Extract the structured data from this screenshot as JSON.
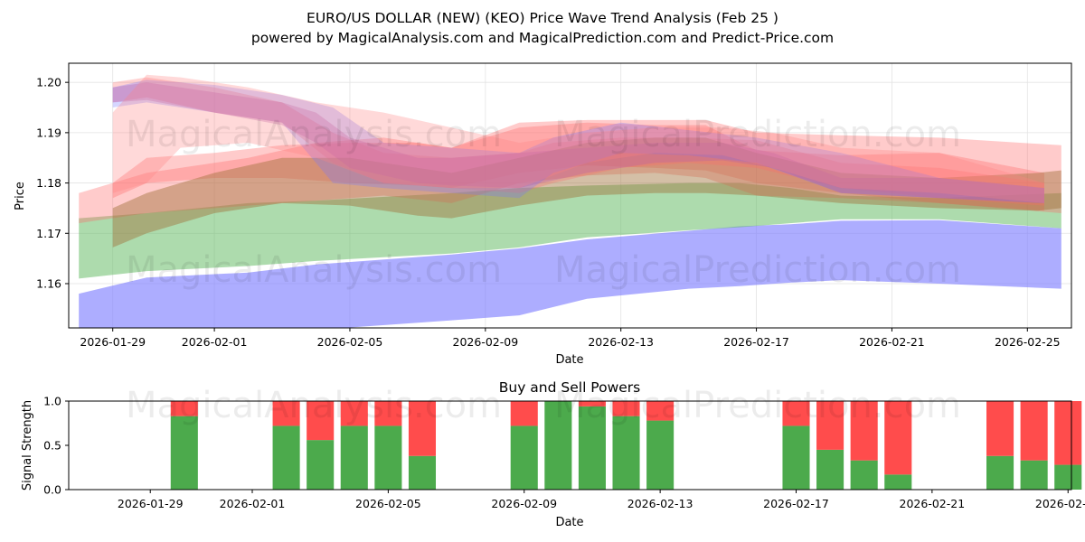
{
  "title_line1": "EURO/US DOLLAR (NEW) (KEO) Price Wave Trend Analysis (Feb 25 )",
  "title_line2": "powered by MagicalAnalysis.com and MagicalPrediction.com and Predict-Price.com",
  "watermarks": [
    "MagicalAnalysis.com",
    "MagicalPrediction.com"
  ],
  "colors": {
    "red": "#ff6b6b",
    "green": "#4aa84a",
    "blue": "#7777ff",
    "buy": "#4caa4c",
    "sell": "#ff4c4c"
  },
  "chart_data": [
    {
      "type": "area",
      "name": "price-wave-chart",
      "xlabel": "Date",
      "ylabel": "Price",
      "xlim": [
        "2026-01-27.7",
        "2026-02-26.3"
      ],
      "ylim": [
        1.1512,
        1.2038
      ],
      "x_ticks": [
        "2026-01-29",
        "2026-02-01",
        "2026-02-05",
        "2026-02-09",
        "2026-02-13",
        "2026-02-17",
        "2026-02-21",
        "2026-02-25"
      ],
      "y_ticks": [
        1.16,
        1.17,
        1.18,
        1.19,
        1.2
      ],
      "y_tick_labels": [
        "1.16",
        "1.17",
        "1.18",
        "1.19",
        "1.20"
      ],
      "bands": [
        {
          "name": "blue-lower-band",
          "color": "#7777ff",
          "opacity": 0.6,
          "x": [
            0,
            2,
            5,
            7,
            11,
            13,
            15,
            18,
            19.5,
            21,
            22.5,
            25.4,
            29
          ],
          "upper": [
            1.158,
            1.1612,
            1.1622,
            1.1638,
            1.1658,
            1.167,
            1.1688,
            1.1705,
            1.1714,
            1.1718,
            1.1725,
            1.1726,
            1.171
          ],
          "lower": [
            1.1505,
            1.1505,
            1.1505,
            1.1508,
            1.1527,
            1.1537,
            1.157,
            1.159,
            1.1595,
            1.1602,
            1.1607,
            1.16,
            1.159
          ]
        },
        {
          "name": "green-band",
          "color": "#5cb85c",
          "opacity": 0.5,
          "x": [
            0,
            2,
            5,
            7,
            11,
            13,
            15,
            18,
            19.5,
            21,
            22.5,
            25.4,
            29
          ],
          "upper": [
            1.173,
            1.174,
            1.176,
            1.1765,
            1.178,
            1.179,
            1.1795,
            1.18,
            1.18,
            1.179,
            1.1775,
            1.177,
            1.178
          ],
          "lower": [
            1.161,
            1.1625,
            1.1635,
            1.1645,
            1.166,
            1.1672,
            1.1692,
            1.1706,
            1.1712,
            1.172,
            1.1728,
            1.1728,
            1.171
          ]
        },
        {
          "name": "red-band-1",
          "color": "#ff6b6b",
          "opacity": 0.35,
          "x": [
            0,
            2,
            5,
            7,
            9,
            11,
            13,
            15,
            17,
            18.5,
            20,
            22.5,
            25.4,
            29
          ],
          "upper": [
            1.178,
            1.182,
            1.185,
            1.188,
            1.189,
            1.187,
            1.192,
            1.1925,
            1.1925,
            1.1925,
            1.19,
            1.1895,
            1.189,
            1.1875
          ],
          "lower": [
            1.172,
            1.174,
            1.1755,
            1.1765,
            1.1775,
            1.176,
            1.18,
            1.1815,
            1.182,
            1.181,
            1.1775,
            1.177,
            1.176,
            1.174
          ]
        },
        {
          "name": "red-band-2",
          "color": "#ff6b6b",
          "opacity": 0.35,
          "x": [
            1,
            2,
            4,
            6,
            8,
            10,
            11,
            13,
            15,
            17,
            18.5,
            20,
            22.5,
            25.4,
            28.5
          ],
          "upper": [
            1.18,
            1.185,
            1.186,
            1.1875,
            1.188,
            1.188,
            1.187,
            1.191,
            1.192,
            1.1915,
            1.1915,
            1.1865,
            1.1855,
            1.186,
            1.182
          ],
          "lower": [
            1.177,
            1.18,
            1.181,
            1.181,
            1.18,
            1.1795,
            1.179,
            1.182,
            1.1835,
            1.183,
            1.1825,
            1.18,
            1.178,
            1.176,
            1.1745
          ]
        },
        {
          "name": "brown-band",
          "color": "#a0703a",
          "opacity": 0.45,
          "x": [
            1,
            2,
            4,
            6,
            8,
            10,
            11,
            13,
            15,
            17,
            18.5,
            20,
            22.5,
            25.4,
            28.3,
            29
          ],
          "upper": [
            1.175,
            1.178,
            1.182,
            1.185,
            1.185,
            1.183,
            1.182,
            1.185,
            1.188,
            1.189,
            1.189,
            1.186,
            1.182,
            1.181,
            1.182,
            1.1825
          ],
          "lower": [
            1.1672,
            1.17,
            1.174,
            1.176,
            1.1755,
            1.1735,
            1.173,
            1.1755,
            1.1775,
            1.178,
            1.178,
            1.1775,
            1.176,
            1.175,
            1.1745,
            1.175
          ]
        },
        {
          "name": "red-band-3",
          "color": "#ff6b6b",
          "opacity": 0.3,
          "x": [
            1,
            2,
            4,
            6,
            7.5,
            9,
            11,
            13,
            14,
            16,
            18,
            20,
            22.5,
            25.4,
            28.5
          ],
          "upper": [
            1.2,
            1.201,
            1.199,
            1.196,
            1.19,
            1.186,
            1.185,
            1.186,
            1.188,
            1.189,
            1.189,
            1.1885,
            1.184,
            1.183,
            1.18
          ],
          "lower": [
            1.196,
            1.197,
            1.194,
            1.192,
            1.184,
            1.18,
            1.179,
            1.178,
            1.18,
            1.183,
            1.184,
            1.183,
            1.179,
            1.177,
            1.1755
          ]
        },
        {
          "name": "blue-wave-band",
          "color": "#7777ff",
          "opacity": 0.3,
          "x": [
            1,
            2,
            4,
            6,
            7.5,
            9,
            11,
            13,
            14,
            16,
            18,
            20,
            22.5,
            25.4,
            28.5
          ],
          "upper": [
            1.199,
            1.2005,
            1.1995,
            1.1975,
            1.195,
            1.188,
            1.187,
            1.186,
            1.189,
            1.192,
            1.1905,
            1.189,
            1.186,
            1.181,
            1.179
          ],
          "lower": [
            1.195,
            1.196,
            1.194,
            1.192,
            1.18,
            1.179,
            1.178,
            1.177,
            1.182,
            1.186,
            1.1855,
            1.184,
            1.178,
            1.177,
            1.176
          ]
        },
        {
          "name": "purple-wave-band",
          "color": "#b05bb0",
          "opacity": 0.3,
          "x": [
            1,
            2,
            4,
            6,
            7,
            8,
            10,
            11,
            13,
            15,
            17,
            19,
            20.5,
            22.5,
            25.4,
            28.5
          ],
          "upper": [
            1.199,
            1.2,
            1.198,
            1.196,
            1.194,
            1.189,
            1.185,
            1.185,
            1.186,
            1.187,
            1.188,
            1.188,
            1.186,
            1.181,
            1.181,
            1.179
          ],
          "lower": [
            1.196,
            1.1965,
            1.194,
            1.1915,
            1.188,
            1.183,
            1.18,
            1.1795,
            1.179,
            1.182,
            1.184,
            1.1845,
            1.183,
            1.178,
            1.177,
            1.176
          ]
        },
        {
          "name": "red-top-band",
          "color": "#ff8080",
          "opacity": 0.3,
          "x": [
            1,
            2,
            3,
            5,
            7,
            9,
            11,
            13,
            15,
            17,
            19,
            20.5,
            22.5,
            25.4,
            28.5
          ],
          "upper": [
            1.194,
            1.2015,
            1.201,
            1.199,
            1.196,
            1.194,
            1.191,
            1.188,
            1.19,
            1.191,
            1.191,
            1.19,
            1.187,
            1.186,
            1.18
          ],
          "lower": [
            1.178,
            1.18,
            1.187,
            1.188,
            1.185,
            1.18,
            1.179,
            1.179,
            1.184,
            1.186,
            1.1855,
            1.183,
            1.179,
            1.178,
            1.176
          ]
        }
      ]
    },
    {
      "type": "bar",
      "name": "buy-sell-powers-chart",
      "title": "Buy and Sell Powers",
      "xlabel": "Date",
      "ylabel": "Signal Strength",
      "ylim": [
        0,
        1.0
      ],
      "y_ticks": [
        0.0,
        0.5,
        1.0
      ],
      "y_tick_labels": [
        "0.0",
        "0.5",
        "1.0"
      ],
      "x_ticks": [
        "2026-01-29",
        "2026-02-01",
        "2026-02-05",
        "2026-02-09",
        "2026-02-13",
        "2026-02-17",
        "2026-02-21",
        "2026-02-25"
      ],
      "series": [
        {
          "name": "Buy",
          "color": "#4caa4c",
          "dates": [
            "2026-01-30",
            "2026-02-02",
            "2026-02-03",
            "2026-02-04",
            "2026-02-05",
            "2026-02-06",
            "2026-02-09",
            "2026-02-10",
            "2026-02-11",
            "2026-02-12",
            "2026-02-13",
            "2026-02-17",
            "2026-02-18",
            "2026-02-19",
            "2026-02-20",
            "2026-02-23",
            "2026-02-24",
            "2026-02-25"
          ],
          "values": [
            0.83,
            0.72,
            0.56,
            0.72,
            0.72,
            0.38,
            0.72,
            1.0,
            0.94,
            0.83,
            0.78,
            0.72,
            0.45,
            0.33,
            0.17,
            0.38,
            0.33,
            0.28
          ]
        },
        {
          "name": "Sell",
          "color": "#ff4c4c",
          "dates": [
            "2026-01-30",
            "2026-02-02",
            "2026-02-03",
            "2026-02-04",
            "2026-02-05",
            "2026-02-06",
            "2026-02-09",
            "2026-02-10",
            "2026-02-11",
            "2026-02-12",
            "2026-02-13",
            "2026-02-17",
            "2026-02-18",
            "2026-02-19",
            "2026-02-20",
            "2026-02-23",
            "2026-02-24",
            "2026-02-25"
          ],
          "values": [
            0.17,
            0.28,
            0.44,
            0.28,
            0.28,
            0.62,
            0.28,
            0.0,
            0.06,
            0.17,
            0.22,
            0.28,
            0.55,
            0.67,
            0.83,
            0.62,
            0.67,
            0.72
          ]
        }
      ]
    }
  ]
}
